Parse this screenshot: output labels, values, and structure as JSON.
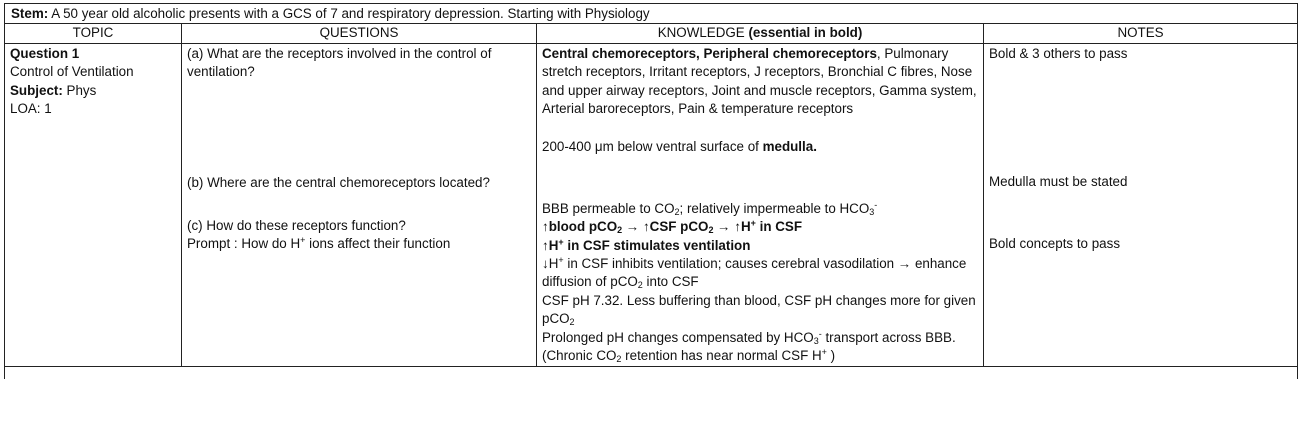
{
  "stem": {
    "label": "Stem:",
    "text": " A 50 year old alcoholic presents with a GCS of 7 and respiratory depression. Starting with Physiology"
  },
  "headers": {
    "topic": "TOPIC",
    "questions": "QUESTIONS",
    "knowledge_main": "KNOWLEDGE ",
    "knowledge_bold": "(essential in bold)",
    "notes": "NOTES"
  },
  "topic": {
    "question_label": "Question 1",
    "name": "Control of Ventilation",
    "subject_label": "Subject:",
    "subject_value": " Phys",
    "loa": "LOA: 1"
  },
  "questions": {
    "a": "(a) What are the receptors involved in the control of ventilation?",
    "b": "(b) Where are the central chemoreceptors located?",
    "c": "(c) How do these receptors function?",
    "c_prompt_pre": "Prompt : How do H",
    "c_prompt_sup": "+",
    "c_prompt_post": " ions affect their function"
  },
  "knowledge": {
    "a_bold": "Central chemoreceptors, Peripheral chemoreceptors",
    "a_rest": ", Pulmonary stretch receptors, Irritant receptors, J receptors, Bronchial C fibres, Nose and upper airway receptors, Joint and muscle receptors, Gamma system, Arterial baroreceptors, Pain & temperature receptors",
    "b_pre": "200-400 μm below ventral surface of ",
    "b_bold": "medulla.",
    "c1_a": "BBB permeable to CO",
    "c1_sub": "2",
    "c1_b": "; relatively impermeable to HCO",
    "c1_sub2": "3",
    "c1_sup": "-",
    "c2_a": "↑blood pCO",
    "c2_sub": "2",
    "c2_b": " → ↑CSF pCO",
    "c2_sub2": "2",
    "c2_c": " → ↑H",
    "c2_sup": "+",
    "c2_d": " in CSF",
    "c3_a": "↑H",
    "c3_sup": "+",
    "c3_b": " in CSF stimulates ventilation",
    "c4_a": "↓H",
    "c4_sup": "+",
    "c4_b": " in CSF inhibits ventilation; causes cerebral vasodilation → enhance diffusion of pCO",
    "c4_sub": "2",
    "c4_c": " into CSF",
    "c5_a": "CSF pH 7.32. Less buffering than blood, CSF pH changes more for given pCO",
    "c5_sub": "2",
    "c6_a": "Prolonged pH changes compensated by HCO",
    "c6_sub": "3",
    "c6_sup": "-",
    "c6_b": " transport across BBB.  (Chronic CO",
    "c6_sub2": "2",
    "c6_c": " retention has near normal CSF H",
    "c6_sup2": "+",
    "c6_d": " )"
  },
  "notes": {
    "a": "Bold & 3 others to pass",
    "b": "Medulla must be stated",
    "c": "Bold concepts to pass"
  }
}
